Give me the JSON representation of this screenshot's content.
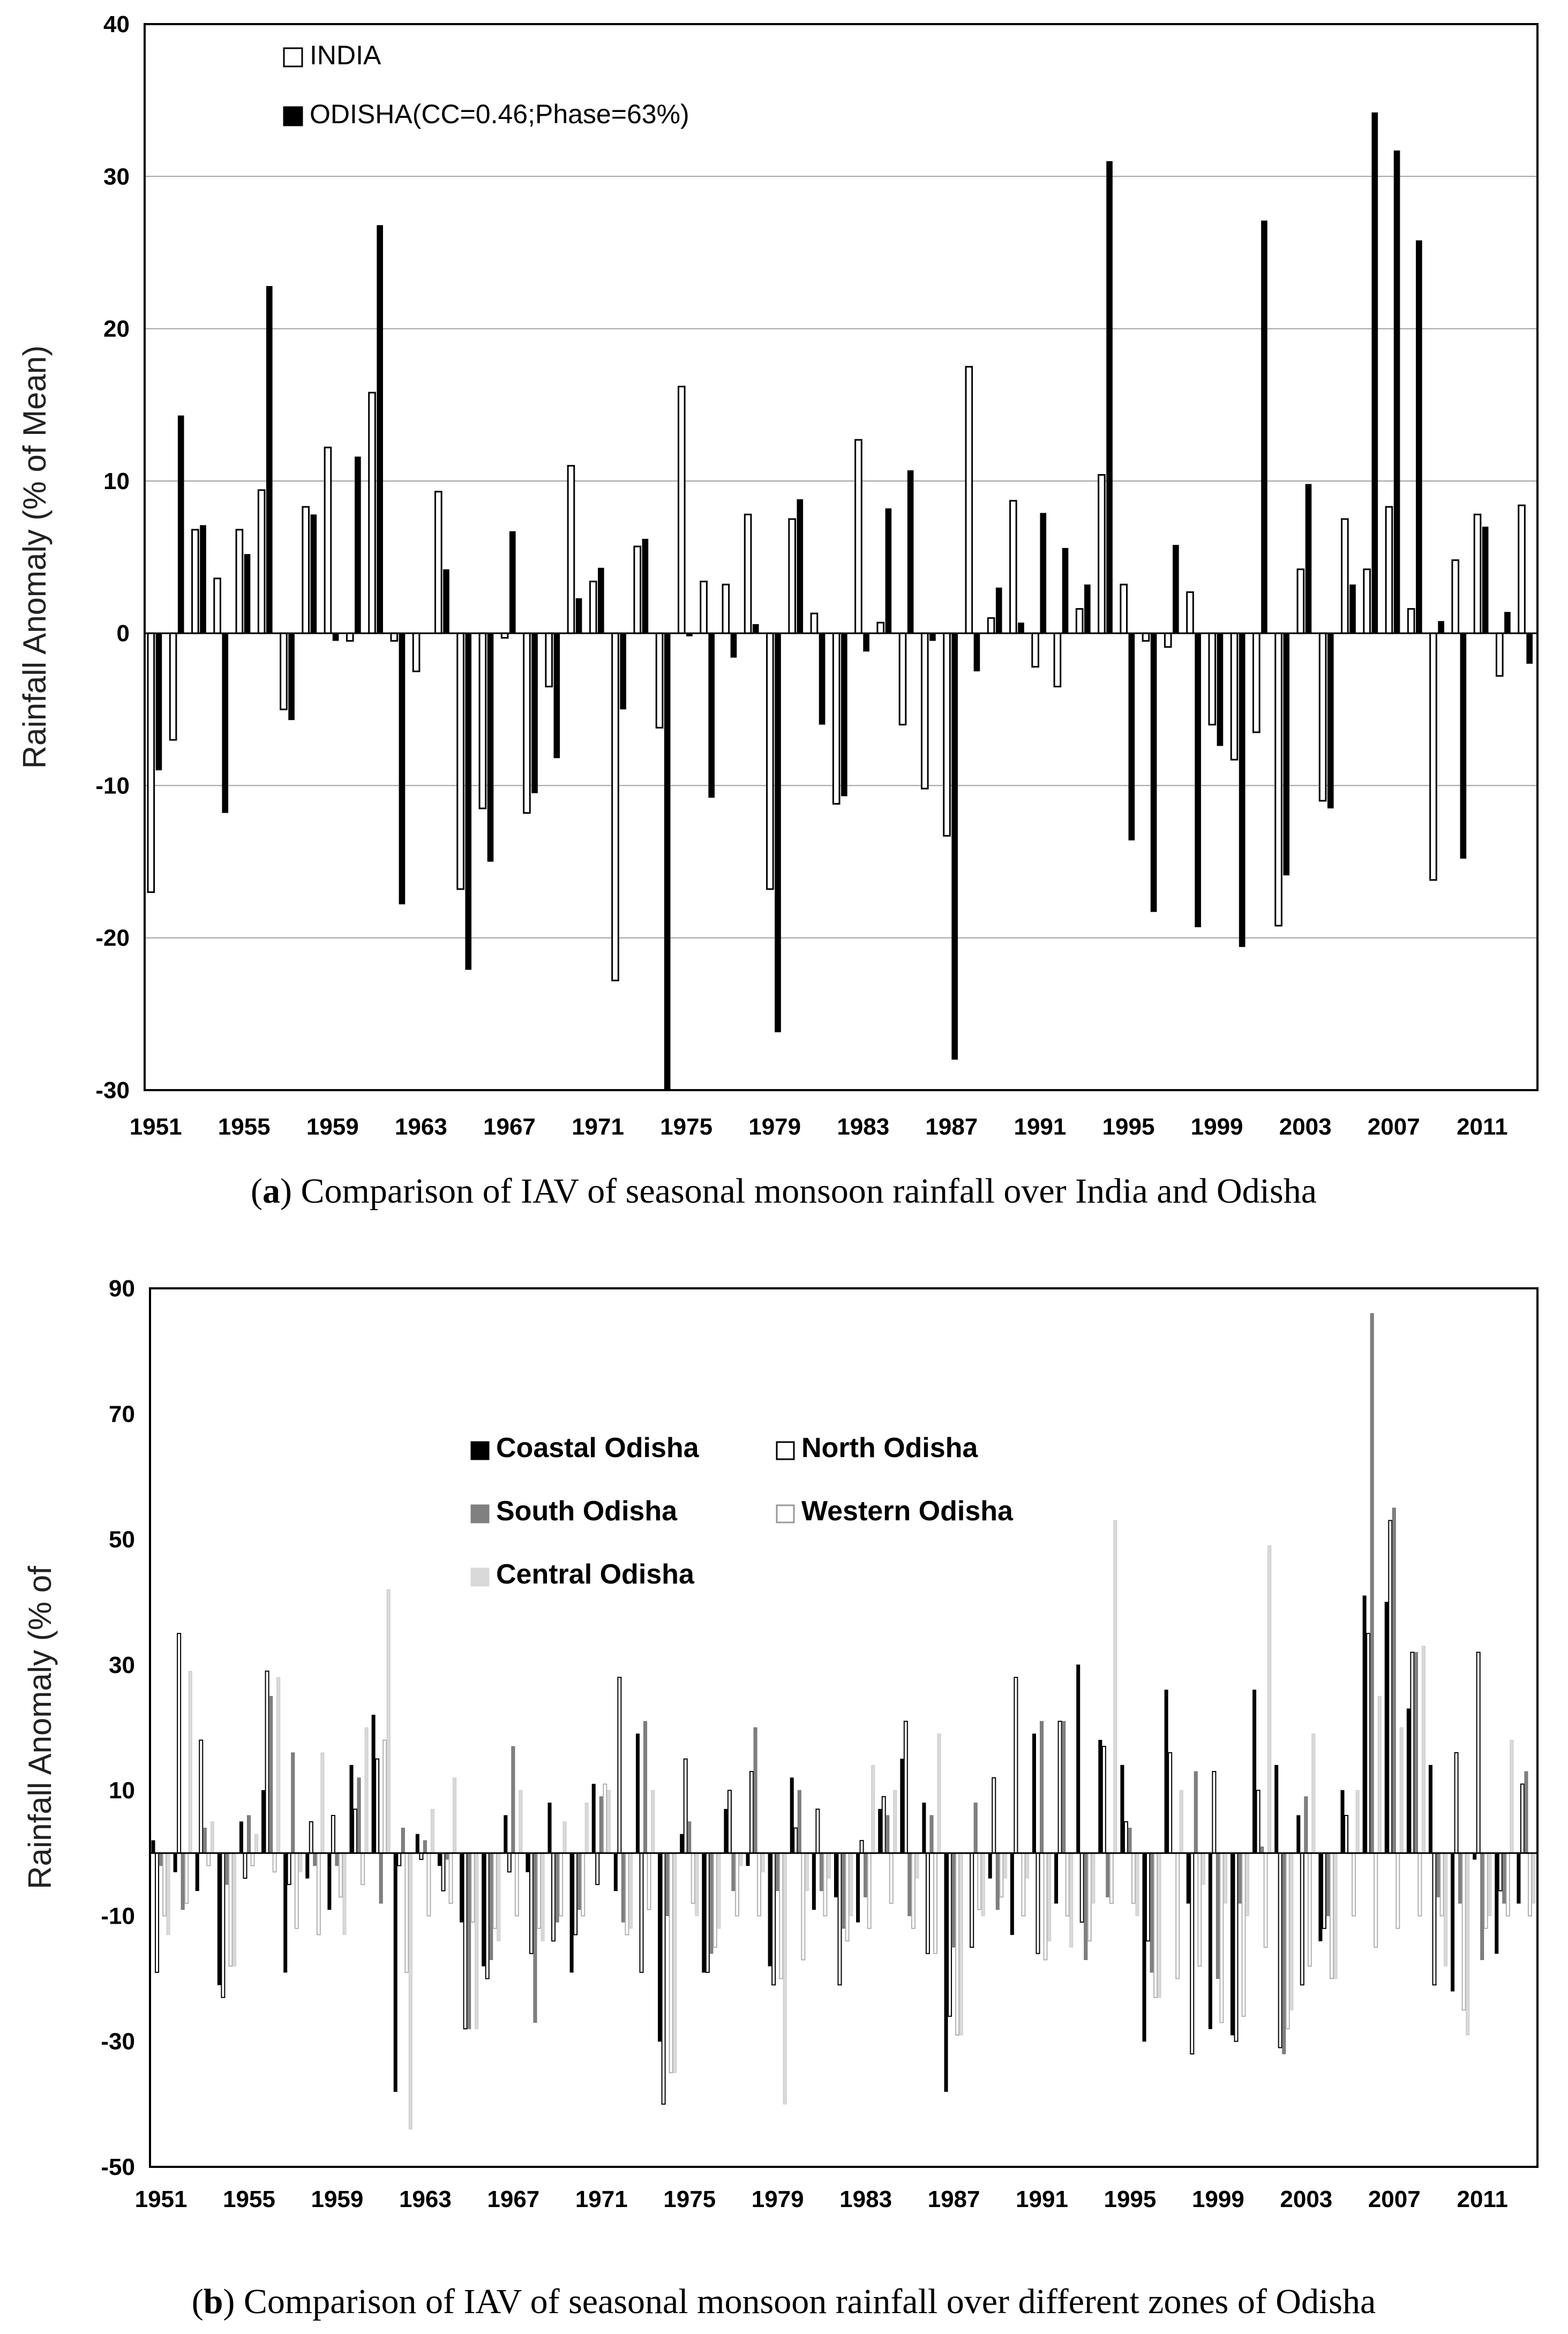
{
  "chart_data": [
    {
      "type": "bar",
      "panel": "a",
      "caption_letter": "a",
      "caption_text": ") Comparison of IAV of seasonal monsoon rainfall over India and Odisha",
      "ylabel": "Rainfall Anomaly (% of Mean)",
      "ylim": [
        -30,
        40
      ],
      "yticks": [
        40,
        30,
        20,
        10,
        0,
        -10,
        -20,
        -30
      ],
      "grid": true,
      "legend_position": "top-left",
      "xtick_labels": [
        "1951",
        "1955",
        "1959",
        "1963",
        "1967",
        "1971",
        "1975",
        "1979",
        "1983",
        "1987",
        "1991",
        "1995",
        "1999",
        "2003",
        "2007",
        "2011"
      ],
      "categories": [
        1951,
        1952,
        1953,
        1954,
        1955,
        1956,
        1957,
        1958,
        1959,
        1960,
        1961,
        1962,
        1963,
        1964,
        1965,
        1966,
        1967,
        1968,
        1969,
        1970,
        1971,
        1972,
        1973,
        1974,
        1975,
        1976,
        1977,
        1978,
        1979,
        1980,
        1981,
        1982,
        1983,
        1984,
        1985,
        1986,
        1987,
        1988,
        1989,
        1990,
        1991,
        1992,
        1993,
        1994,
        1995,
        1996,
        1997,
        1998,
        1999,
        2000,
        2001,
        2002,
        2003,
        2004,
        2005,
        2006,
        2007,
        2008,
        2009,
        2010,
        2011,
        2012,
        2013
      ],
      "series": [
        {
          "name": "INDIA",
          "color": "#ffffff",
          "values": [
            -17,
            -7,
            6.8,
            3.6,
            6.8,
            9.4,
            -5,
            8.3,
            12.2,
            -0.5,
            15.8,
            -0.5,
            -2.5,
            9.3,
            -16.8,
            -11.5,
            -0.3,
            -11.8,
            -3.5,
            11,
            3.4,
            -22.8,
            5.7,
            -6.2,
            16.2,
            3.4,
            3.2,
            7.8,
            -16.8,
            7.5,
            1.3,
            -11.2,
            12.7,
            0.7,
            -6,
            -10.2,
            -13.3,
            17.5,
            1,
            8.7,
            -2.2,
            -3.5,
            1.6,
            10.4,
            3.2,
            -0.5,
            -0.9,
            2.7,
            -6,
            -8.3,
            -6.5,
            -19.2,
            4.2,
            -11,
            7.5,
            4.2,
            8.3,
            1.6,
            -16.2,
            4.8,
            7.8,
            -2.8,
            8.4
          ]
        },
        {
          "name": "ODISHA(CC=0.46;Phase=63%)",
          "color": "#000000",
          "values": [
            -9,
            14.3,
            7.1,
            -11.8,
            5.2,
            22.8,
            -5.7,
            7.8,
            -0.5,
            11.6,
            26.8,
            -17.8,
            0,
            4.2,
            -22.1,
            -15,
            6.7,
            -10.5,
            -8.2,
            2.3,
            4.3,
            -5,
            6.2,
            -30,
            -0.2,
            -10.8,
            -1.6,
            0.6,
            -26.2,
            8.8,
            -6,
            -10.7,
            -1.2,
            8.2,
            10.7,
            -0.5,
            -28,
            -2.5,
            3,
            0.7,
            7.9,
            5.6,
            3.2,
            31,
            -13.6,
            -18.3,
            5.8,
            -19.3,
            -7.4,
            -20.6,
            27.1,
            -15.9,
            9.8,
            -11.5,
            3.2,
            34.2,
            31.7,
            25.8,
            0.8,
            -14.8,
            7,
            1.4,
            -2
          ]
        }
      ]
    },
    {
      "type": "bar",
      "panel": "b",
      "caption_letter": "b",
      "caption_text": ") Comparison of IAV of seasonal monsoon rainfall over different zones of Odisha",
      "ylabel": "Rainfall Anomaly (% of",
      "ylim": [
        -50,
        90
      ],
      "yticks": [
        90,
        70,
        50,
        30,
        10,
        -10,
        -30,
        -50
      ],
      "grid": false,
      "legend_position": "top-center",
      "xtick_labels": [
        "1951",
        "1955",
        "1959",
        "1963",
        "1967",
        "1971",
        "1975",
        "1979",
        "1983",
        "1987",
        "1991",
        "1995",
        "1999",
        "2003",
        "2007",
        "2011"
      ],
      "categories": [
        1951,
        1952,
        1953,
        1954,
        1955,
        1956,
        1957,
        1958,
        1959,
        1960,
        1961,
        1962,
        1963,
        1964,
        1965,
        1966,
        1967,
        1968,
        1969,
        1970,
        1971,
        1972,
        1973,
        1974,
        1975,
        1976,
        1977,
        1978,
        1979,
        1980,
        1981,
        1982,
        1983,
        1984,
        1985,
        1986,
        1987,
        1988,
        1989,
        1990,
        1991,
        1992,
        1993,
        1994,
        1995,
        1996,
        1997,
        1998,
        1999,
        2000,
        2001,
        2002,
        2003,
        2004,
        2005,
        2006,
        2007,
        2008,
        2009,
        2010,
        2011,
        2012,
        2013
      ],
      "series": [
        {
          "name": "Coastal Odisha",
          "color": "#000000",
          "values": [
            2,
            -3,
            -6,
            -21,
            5,
            10,
            -19,
            -4,
            -9,
            14,
            22,
            -38,
            3,
            -2,
            -11,
            -18,
            6,
            -3,
            8,
            -19,
            11,
            -6,
            19,
            -30,
            3,
            -19,
            7,
            -2,
            -18,
            12,
            -9,
            -7,
            -11,
            7,
            15,
            8,
            -38,
            0,
            -4,
            -13,
            19,
            -8,
            30,
            18,
            14,
            -30,
            26,
            -8,
            -28,
            -29,
            26,
            14,
            6,
            -14,
            10,
            41,
            40,
            23,
            14,
            -22,
            -1,
            -16,
            -8
          ]
        },
        {
          "name": "North Odisha",
          "color": "#ffffff",
          "values": [
            -19,
            35,
            18,
            -23,
            -4,
            29,
            -5,
            5,
            6,
            7,
            15,
            -2,
            -1,
            -6,
            -28,
            -20,
            -3,
            -16,
            -14,
            -13,
            -5,
            28,
            -19,
            -40,
            15,
            -19,
            10,
            13,
            -21,
            4,
            7,
            -21,
            2,
            9,
            21,
            -16,
            -26,
            -15,
            12,
            28,
            -16,
            21,
            -11,
            17,
            5,
            -14,
            16,
            -32,
            13,
            -30,
            10,
            -31,
            -21,
            -12,
            6,
            35,
            53,
            32,
            -21,
            16,
            32,
            -6,
            11
          ]
        },
        {
          "name": "South Odisha",
          "color": "#808080",
          "values": [
            -2,
            -9,
            4,
            -5,
            6,
            25,
            16,
            -2,
            -2,
            12,
            -8,
            4,
            2,
            -1,
            -28,
            -17,
            17,
            -27,
            -11,
            -9,
            9,
            -11,
            21,
            -10,
            5,
            -16,
            -6,
            20,
            -6,
            10,
            -6,
            -12,
            -7,
            6,
            -10,
            6,
            -15,
            8,
            -9,
            0,
            21,
            21,
            -17,
            -7,
            4,
            -19,
            0,
            13,
            -20,
            -8,
            1,
            -32,
            9,
            -10,
            0,
            86,
            55,
            32,
            -7,
            -8,
            -17,
            -8,
            13
          ]
        },
        {
          "name": "Western Odisha",
          "color": "#ffffff",
          "values": [
            -10,
            -8,
            -2,
            -18,
            -2,
            -3,
            -12,
            -13,
            -7,
            -5,
            18,
            -19,
            -10,
            -8,
            -11,
            -12,
            -10,
            -12,
            -10,
            -10,
            11,
            -13,
            -9,
            -35,
            -8,
            -15,
            -10,
            -10,
            -20,
            -17,
            -10,
            -14,
            -12,
            -8,
            -12,
            -16,
            -29,
            -9,
            -7,
            -10,
            -17,
            -10,
            -14,
            -8,
            -8,
            -23,
            -20,
            -18,
            -27,
            -26,
            -15,
            -28,
            -18,
            -20,
            -10,
            -15,
            -12,
            -10,
            -10,
            -25,
            -12,
            -10,
            -10
          ]
        },
        {
          "name": "Central Odisha",
          "color": "#d9d9d9",
          "values": [
            -13,
            29,
            5,
            -18,
            3,
            28,
            -3,
            16,
            -13,
            20,
            42,
            -44,
            7,
            12,
            -28,
            -14,
            10,
            -14,
            5,
            8,
            10,
            -12,
            10,
            -35,
            -10,
            -12,
            -2,
            -3,
            -40,
            -6,
            -4,
            -10,
            14,
            10,
            -4,
            19,
            -29,
            -10,
            -4,
            -4,
            -14,
            -15,
            -8,
            53,
            -10,
            -23,
            10,
            -5,
            -8,
            -10,
            49,
            -25,
            19,
            -20,
            10,
            25,
            20,
            33,
            -18,
            -29,
            -10,
            18,
            -8
          ]
        }
      ]
    }
  ]
}
